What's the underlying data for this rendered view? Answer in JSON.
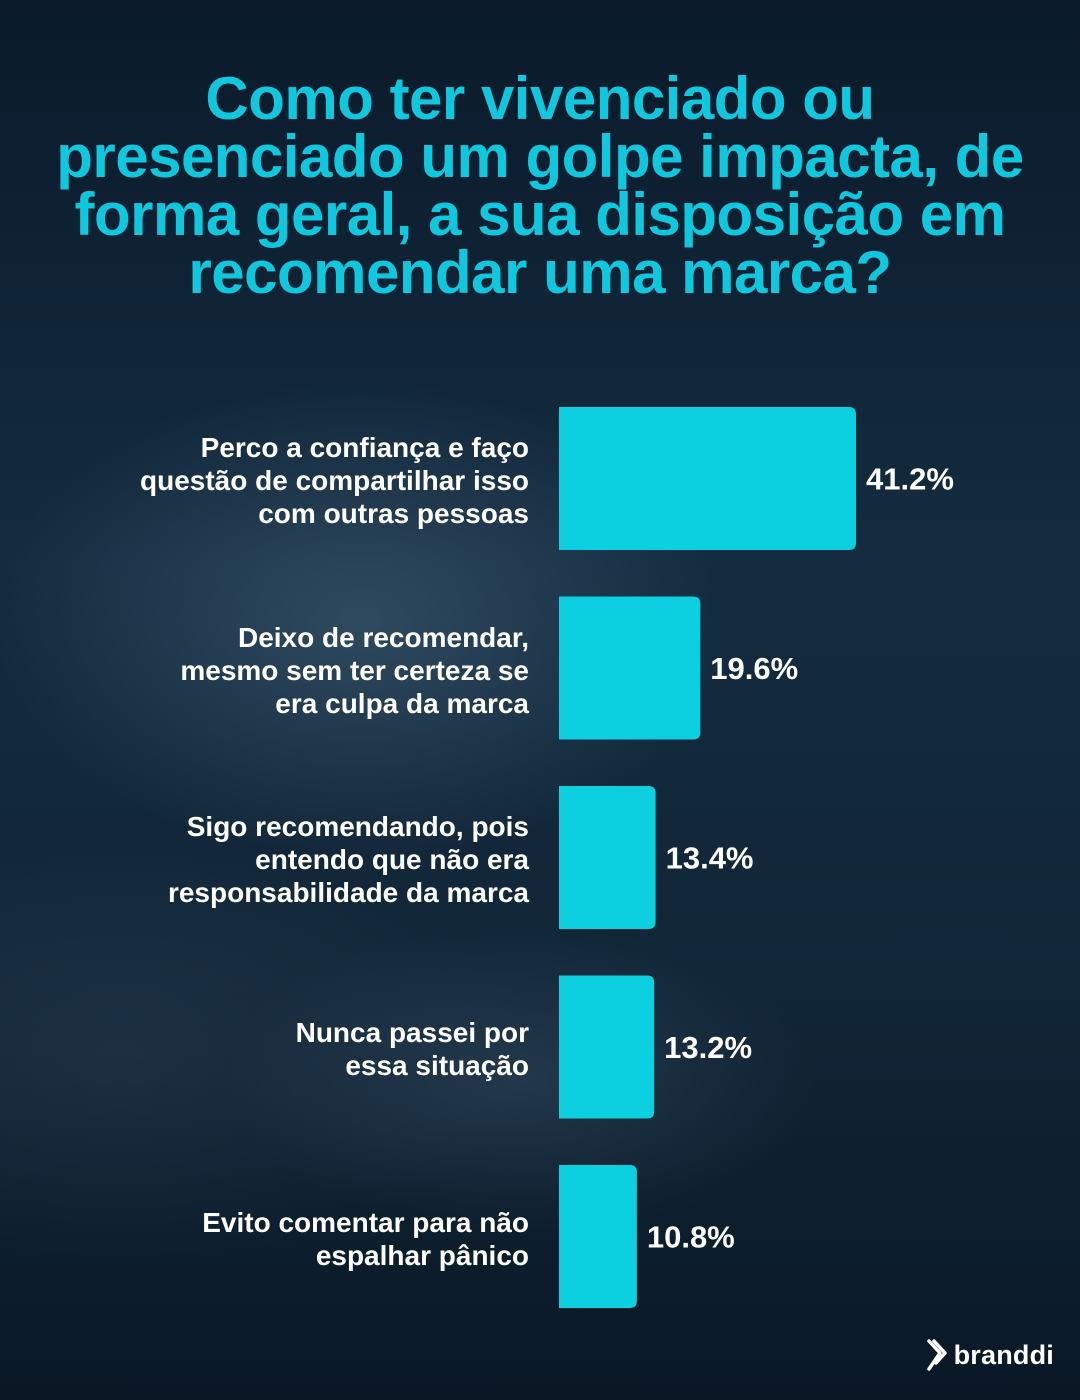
{
  "title": "Como ter vivenciado ou presenciado um golpe impacta, de forma geral, a sua disposição em recomendar uma marca?",
  "brand": {
    "name": "branddi",
    "icon": "branddi-logo-icon"
  },
  "colors": {
    "accent": "#10c8de",
    "bar": "#0ccfe0",
    "text": "#ffffff",
    "background": "#0b1c2c"
  },
  "chart_data": {
    "type": "bar",
    "orientation": "horizontal",
    "title": "Como ter vivenciado ou presenciado um golpe impacta, de forma geral, a sua disposição em recomendar uma marca?",
    "categories": [
      "Perco a confiança e faço questão de compartilhar isso com outras pessoas",
      "Deixo de recomendar, mesmo sem ter certeza se era culpa da marca",
      "Sigo recomendando, pois entendo que não era responsabilidade da marca",
      "Nunca passei por essa situação",
      "Evito comentar para não espalhar pânico"
    ],
    "values": [
      41.2,
      19.6,
      13.4,
      13.2,
      10.8
    ],
    "value_labels": [
      "41.2%",
      "19.6%",
      "13.4%",
      "13.2%",
      "10.8%"
    ],
    "unit": "%",
    "xlim": [
      0,
      41.2
    ],
    "grid": false,
    "legend": "none"
  }
}
